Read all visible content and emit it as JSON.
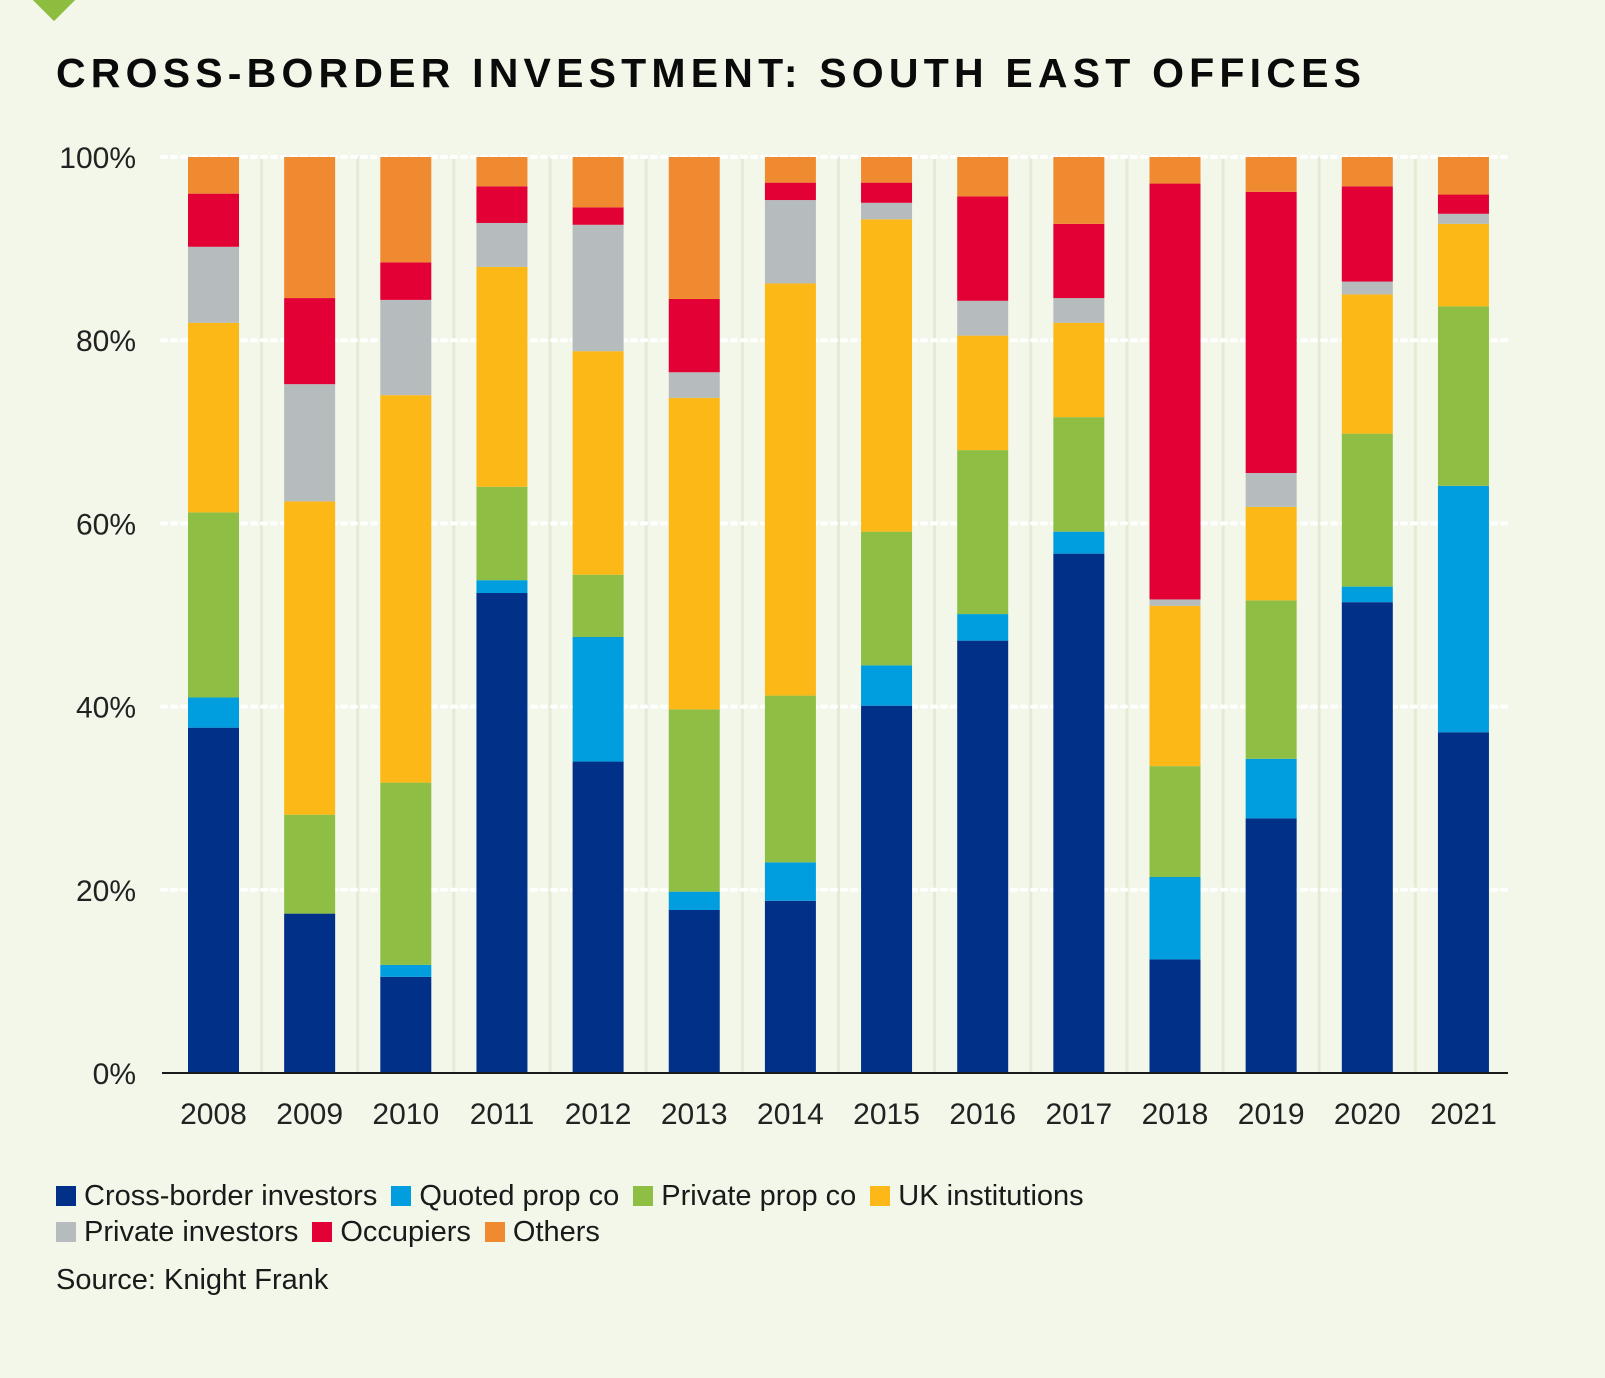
{
  "title": "CROSS-BORDER INVESTMENT: SOUTH EAST OFFICES",
  "source": "Source: Knight Frank",
  "chart_data": {
    "type": "bar",
    "stacked": true,
    "title": "CROSS-BORDER INVESTMENT: SOUTH EAST OFFICES",
    "xlabel": "",
    "ylabel": "",
    "ylim": [
      0,
      100
    ],
    "yticks": [
      0,
      20,
      40,
      60,
      80,
      100
    ],
    "ytick_labels": [
      "0%",
      "20%",
      "40%",
      "60%",
      "80%",
      "100%"
    ],
    "grid": "horizontal dotted",
    "legend_position": "bottom-left",
    "categories": [
      "2008",
      "2009",
      "2010",
      "2011",
      "2012",
      "2013",
      "2014",
      "2015",
      "2016",
      "2017",
      "2018",
      "2019",
      "2020",
      "2021"
    ],
    "series": [
      {
        "name": "Cross-border investors",
        "color": "#003087",
        "values": [
          37.7,
          17.4,
          10.5,
          52.4,
          34.0,
          17.8,
          18.8,
          40.1,
          47.2,
          56.7,
          12.4,
          27.8,
          51.4,
          37.2
        ]
      },
      {
        "name": "Quoted prop co",
        "color": "#009ddf",
        "values": [
          3.3,
          0.0,
          1.3,
          1.4,
          13.6,
          2.0,
          4.2,
          4.4,
          2.9,
          2.4,
          9.0,
          6.5,
          1.7,
          26.9
        ]
      },
      {
        "name": "Private prop co",
        "color": "#8fbe44",
        "values": [
          20.2,
          10.8,
          19.9,
          10.2,
          6.8,
          19.9,
          18.2,
          14.6,
          17.9,
          12.5,
          12.1,
          17.3,
          16.7,
          19.6
        ]
      },
      {
        "name": "UK institutions",
        "color": "#fbb816",
        "values": [
          20.7,
          34.2,
          42.3,
          24.0,
          24.4,
          34.0,
          45.0,
          34.1,
          12.5,
          10.3,
          17.5,
          10.2,
          15.2,
          9.0
        ]
      },
      {
        "name": "Private investors",
        "color": "#b6bcbd",
        "values": [
          8.3,
          12.8,
          10.4,
          4.8,
          13.8,
          2.8,
          9.1,
          1.8,
          3.8,
          2.7,
          0.7,
          3.7,
          1.4,
          1.1
        ]
      },
      {
        "name": "Occupiers",
        "color": "#e20034",
        "values": [
          5.8,
          9.4,
          4.1,
          4.0,
          1.9,
          8.0,
          1.9,
          2.2,
          11.4,
          8.1,
          45.4,
          30.7,
          10.4,
          2.1
        ]
      },
      {
        "name": "Others",
        "color": "#ef8a31",
        "values": [
          4.0,
          15.4,
          11.5,
          3.2,
          5.5,
          15.5,
          2.8,
          2.8,
          4.3,
          7.3,
          2.9,
          3.8,
          3.2,
          4.1
        ]
      }
    ]
  },
  "legend": {
    "rows": [
      [
        0,
        1,
        2,
        3
      ],
      [
        4,
        5,
        6
      ]
    ]
  }
}
